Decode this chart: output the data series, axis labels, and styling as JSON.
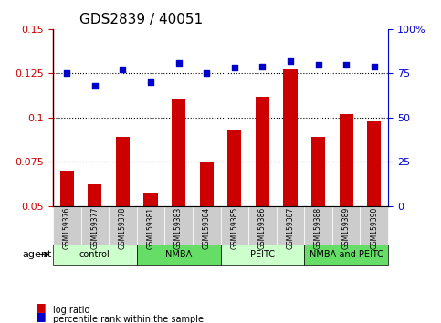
{
  "title": "GDS2839 / 40051",
  "samples": [
    "GSM159376",
    "GSM159377",
    "GSM159378",
    "GSM159381",
    "GSM159383",
    "GSM159384",
    "GSM159385",
    "GSM159386",
    "GSM159387",
    "GSM159388",
    "GSM159389",
    "GSM159390"
  ],
  "log_ratio": [
    0.07,
    0.062,
    0.089,
    0.057,
    0.11,
    0.075,
    0.093,
    0.112,
    0.127,
    0.089,
    0.102,
    0.098
  ],
  "percentile_rank": [
    75,
    68,
    77,
    70,
    81,
    75,
    78,
    79,
    82,
    80,
    80,
    79
  ],
  "groups": [
    {
      "label": "control",
      "color": "#ccffcc",
      "start": 0,
      "end": 3
    },
    {
      "label": "NMBA",
      "color": "#66dd66",
      "start": 3,
      "end": 6
    },
    {
      "label": "PEITC",
      "color": "#ccffcc",
      "start": 6,
      "end": 9
    },
    {
      "label": "NMBA and PEITC",
      "color": "#66dd66",
      "start": 9,
      "end": 12
    }
  ],
  "bar_color": "#cc0000",
  "dot_color": "#0000cc",
  "ylim_left": [
    0.05,
    0.15
  ],
  "ylim_right": [
    0,
    100
  ],
  "yticks_left": [
    0.05,
    0.075,
    0.1,
    0.125,
    0.15
  ],
  "yticks_right": [
    0,
    25,
    50,
    75,
    100
  ],
  "ytick_labels_left": [
    "0.05",
    "0.075",
    "0.1",
    "0.125",
    "0.15"
  ],
  "ytick_labels_right": [
    "0",
    "25",
    "50",
    "75",
    "100%"
  ],
  "grid_values": [
    0.075,
    0.1,
    0.125
  ],
  "agent_label": "agent",
  "legend_bar_label": "log ratio",
  "legend_dot_label": "percentile rank within the sample",
  "title_fontsize": 11,
  "tick_fontsize": 8,
  "label_fontsize": 9
}
